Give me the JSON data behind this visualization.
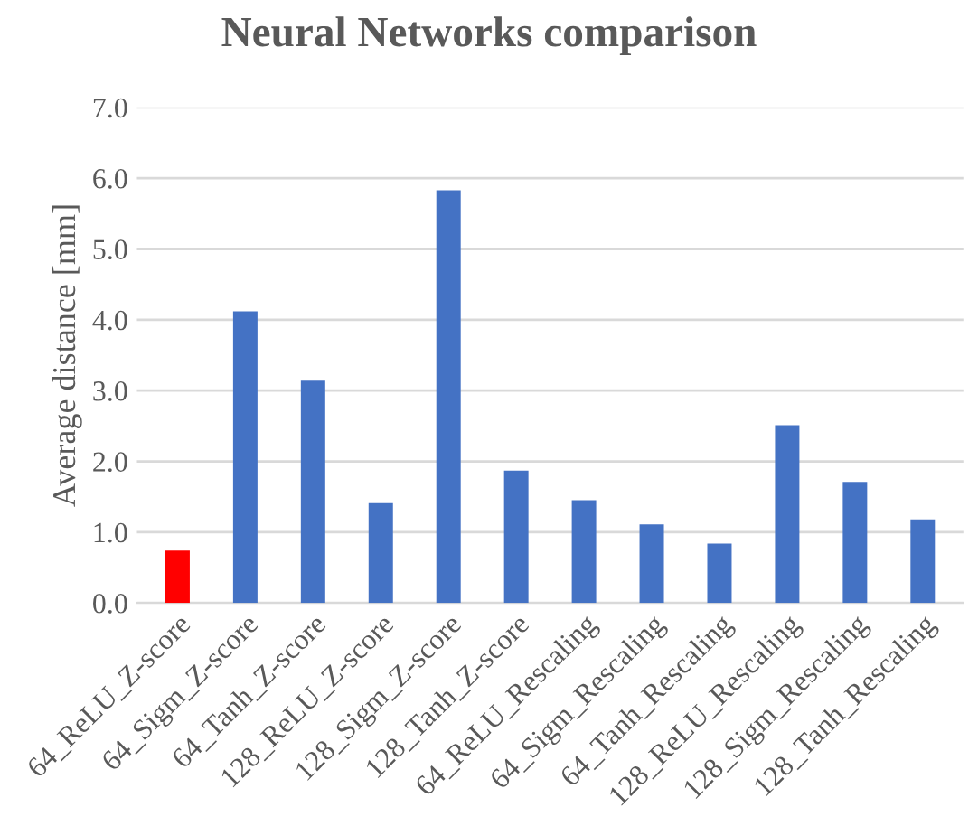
{
  "chart_data": {
    "type": "bar",
    "title": "Neural Networks comparison",
    "ylabel": "Average distance [mm]",
    "categories": [
      "64_ReLU_Z-score",
      "64_Sigm_Z-score",
      "64_Tanh_Z-score",
      "128_ReLU_Z-score",
      "128_Sigm_Z-score",
      "128_Tanh_Z-score",
      "64_ReLU_Rescaling",
      "64_Sigm_Rescaling",
      "64_Tanh_Rescaling",
      "128_ReLU_Rescaling",
      "128_Sigm_Rescaling",
      "128_Tanh_Rescaling"
    ],
    "values": [
      0.74,
      4.12,
      3.14,
      1.41,
      5.83,
      1.87,
      1.45,
      1.11,
      0.84,
      2.51,
      1.71,
      1.18
    ],
    "colors": [
      "#ff0000",
      "#4472c4",
      "#4472c4",
      "#4472c4",
      "#4472c4",
      "#4472c4",
      "#4472c4",
      "#4472c4",
      "#4472c4",
      "#4472c4",
      "#4472c4",
      "#4472c4"
    ],
    "ylim": [
      0,
      7
    ],
    "yticks": [
      {
        "value": 0,
        "label": "0.0"
      },
      {
        "value": 1,
        "label": "1.0"
      },
      {
        "value": 2,
        "label": "2.0"
      },
      {
        "value": 3,
        "label": "3.0"
      },
      {
        "value": 4,
        "label": "4.0"
      },
      {
        "value": 5,
        "label": "5.0"
      },
      {
        "value": 6,
        "label": "6.0"
      },
      {
        "value": 7,
        "label": "7.0"
      }
    ],
    "grid": "y"
  }
}
